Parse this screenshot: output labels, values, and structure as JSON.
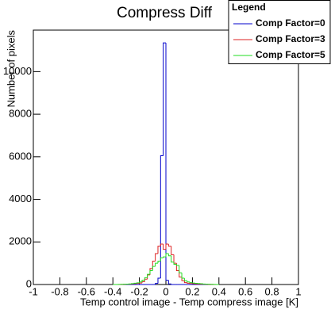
{
  "chart_data": {
    "type": "histogram",
    "title": "Compress Diff",
    "x_label": "Temp control image - Temp compress image [K]",
    "y_label": "Number of pixels",
    "legend_title": "Legend",
    "legend_position": "top-right",
    "bins": [
      -0.4,
      -0.38,
      -0.36,
      -0.34,
      -0.32,
      -0.3,
      -0.28,
      -0.26,
      -0.24,
      -0.22,
      -0.2,
      -0.18,
      -0.16,
      -0.14,
      -0.12,
      -0.1,
      -0.08,
      -0.06,
      -0.04,
      -0.02,
      0,
      0.02,
      0.04,
      0.06,
      0.08,
      0.1,
      0.12,
      0.14,
      0.16,
      0.18,
      0.2,
      0.22,
      0.24,
      0.26,
      0.28,
      0.3,
      0.32,
      0.34,
      0.36,
      0.38,
      0.4
    ],
    "series": [
      {
        "name": "Comp Factor=0",
        "color": "#0000cc",
        "values": [
          0,
          0,
          0,
          0,
          0,
          0,
          0,
          0,
          0,
          0,
          0,
          0,
          0,
          0,
          0,
          0,
          50,
          300,
          6050,
          11350,
          200,
          30,
          0,
          0,
          0,
          0,
          0,
          0,
          0,
          0,
          0,
          0,
          0,
          0,
          0,
          0,
          0,
          0,
          0,
          0
        ]
      },
      {
        "name": "Comp Factor=3",
        "color": "#dd2222",
        "values": [
          0,
          0,
          0,
          5,
          10,
          15,
          20,
          30,
          40,
          50,
          70,
          130,
          250,
          450,
          750,
          1100,
          1450,
          1800,
          1900,
          1650,
          1900,
          1800,
          1400,
          1000,
          650,
          350,
          180,
          90,
          60,
          45,
          35,
          30,
          25,
          20,
          15,
          10,
          5,
          5,
          0,
          0
        ]
      },
      {
        "name": "Comp Factor=5",
        "color": "#22dd22",
        "values": [
          0,
          0,
          5,
          10,
          15,
          20,
          30,
          40,
          60,
          80,
          120,
          200,
          320,
          480,
          650,
          850,
          1000,
          1100,
          1250,
          1300,
          1450,
          1350,
          1050,
          950,
          900,
          550,
          300,
          180,
          120,
          90,
          70,
          55,
          45,
          35,
          25,
          20,
          15,
          10,
          5,
          0
        ]
      }
    ],
    "xlim": [
      -1,
      1
    ],
    "xticks": [
      -1,
      -0.8,
      -0.6,
      -0.4,
      -0.2,
      0,
      0.2,
      0.4,
      0.6,
      0.8,
      1
    ],
    "ylim": [
      0,
      11950
    ],
    "yticks": [
      0,
      2000,
      4000,
      6000,
      8000,
      10000
    ]
  }
}
